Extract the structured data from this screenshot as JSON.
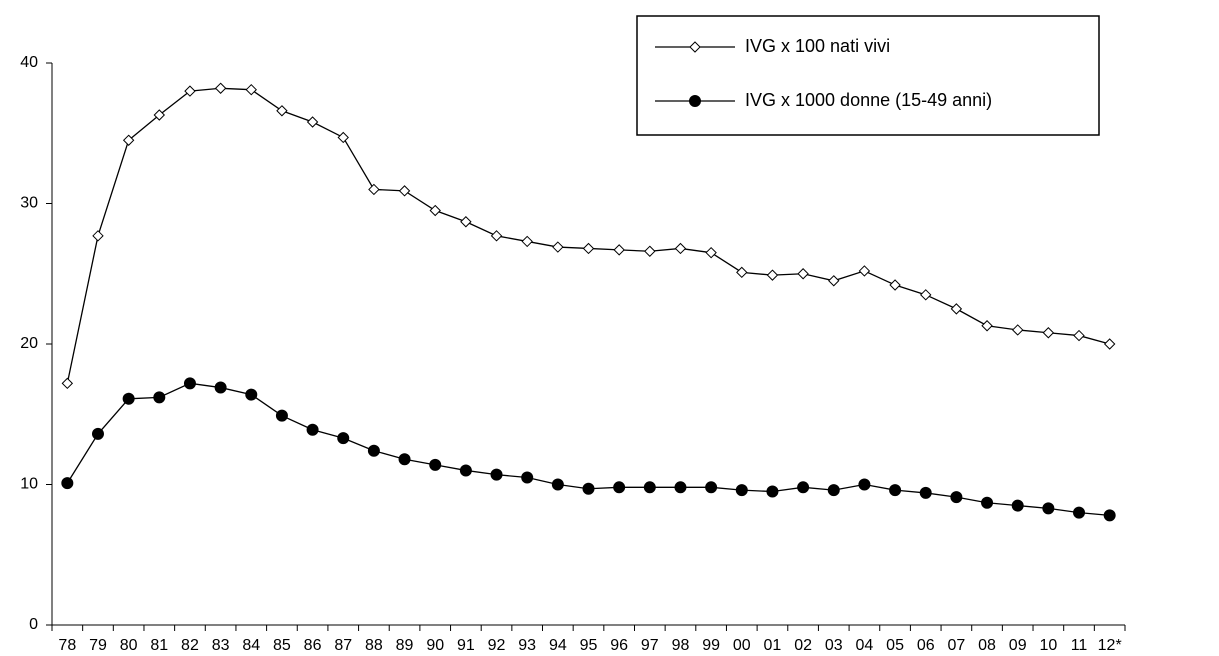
{
  "chart_data": {
    "type": "line",
    "categories": [
      "78",
      "79",
      "80",
      "81",
      "82",
      "83",
      "84",
      "85",
      "86",
      "87",
      "88",
      "89",
      "90",
      "91",
      "92",
      "93",
      "94",
      "95",
      "96",
      "97",
      "98",
      "99",
      "00",
      "01",
      "02",
      "03",
      "04",
      "05",
      "06",
      "07",
      "08",
      "09",
      "10",
      "11",
      "12*"
    ],
    "series": [
      {
        "name": "IVG x 100 nati vivi",
        "color": "#000000",
        "marker": "diamond",
        "values": [
          17.2,
          27.7,
          34.5,
          36.3,
          38.0,
          38.2,
          38.1,
          36.6,
          35.8,
          34.7,
          31.0,
          30.9,
          29.5,
          28.7,
          27.7,
          27.3,
          26.9,
          26.8,
          26.7,
          26.6,
          26.8,
          26.5,
          25.1,
          24.9,
          25.0,
          24.5,
          25.2,
          24.2,
          23.5,
          22.5,
          21.3,
          21.0,
          20.8,
          20.6,
          20.0
        ]
      },
      {
        "name": "IVG x 1000 donne (15-49 anni)",
        "color": "#000000",
        "marker": "circle",
        "values": [
          10.1,
          13.6,
          16.1,
          16.2,
          17.2,
          16.9,
          16.4,
          14.9,
          13.9,
          13.3,
          12.4,
          11.8,
          11.4,
          11.0,
          10.7,
          10.5,
          10.0,
          9.7,
          9.8,
          9.8,
          9.8,
          9.8,
          9.6,
          9.5,
          9.8,
          9.6,
          10.0,
          9.6,
          9.4,
          9.1,
          8.7,
          8.5,
          8.3,
          8.0,
          7.8
        ]
      }
    ],
    "ylim": [
      0,
      40
    ],
    "yticks": [
      0,
      10,
      20,
      30,
      40
    ],
    "grid": false,
    "legend": "top-right"
  }
}
